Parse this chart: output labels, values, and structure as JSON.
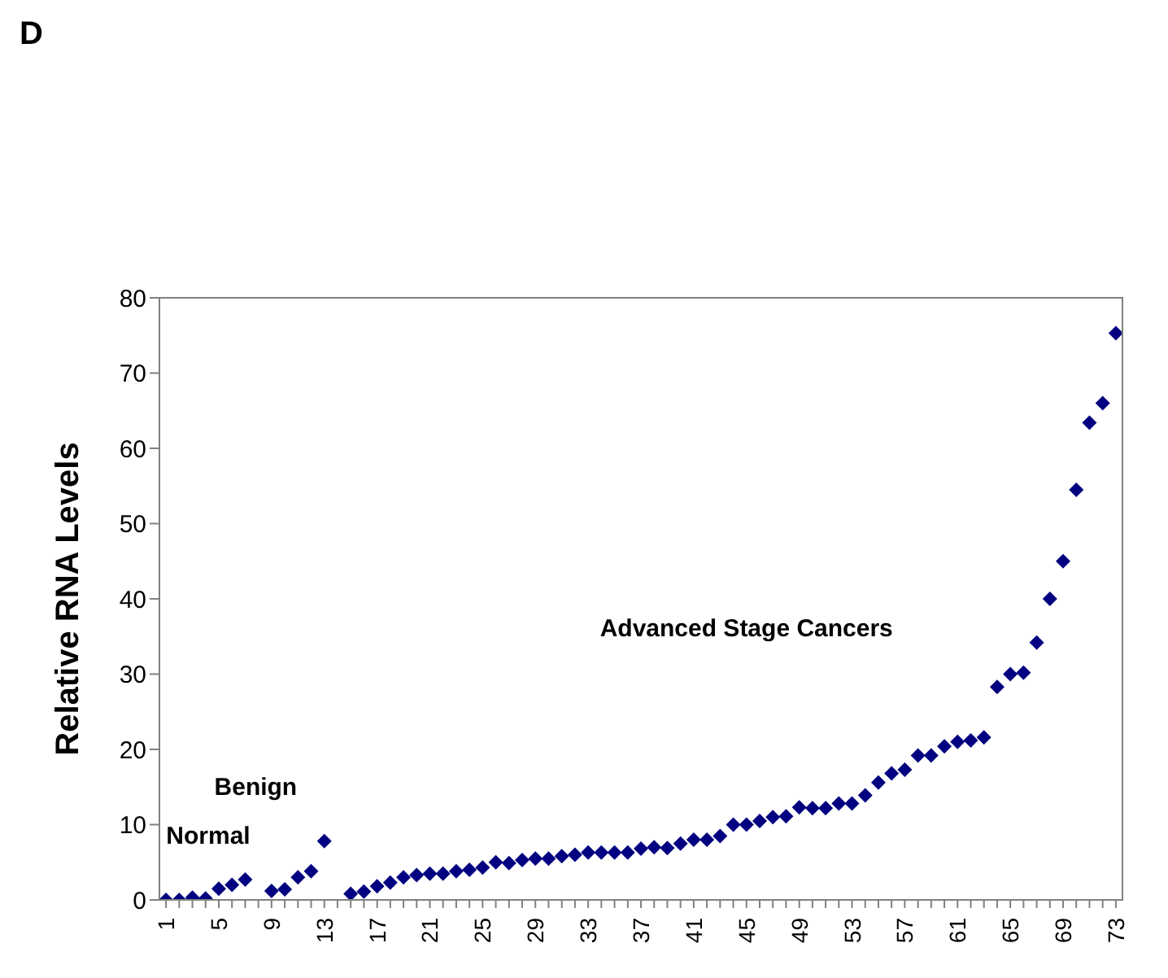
{
  "chart_data": {
    "type": "scatter",
    "title": "D",
    "ylabel": "Relative RNA Levels",
    "categories": [
      "1",
      null,
      null,
      null,
      "5",
      null,
      null,
      null,
      "9",
      null,
      null,
      null,
      "13",
      null,
      null,
      null,
      "17",
      null,
      null,
      null,
      "21",
      null,
      null,
      null,
      "25",
      null,
      null,
      null,
      "29",
      null,
      null,
      null,
      "33",
      null,
      null,
      null,
      "37",
      null,
      null,
      null,
      "41",
      null,
      null,
      null,
      "45",
      null,
      null,
      null,
      "49",
      null,
      null,
      null,
      "53",
      null,
      null,
      null,
      "57",
      null,
      null,
      null,
      "61",
      null,
      null,
      null,
      "65",
      null,
      null,
      null,
      "69",
      null,
      null,
      null,
      "73"
    ],
    "series": [
      {
        "color": "#000080",
        "values": [
          0,
          0,
          0.3,
          0.2,
          1.5,
          2,
          2.7,
          null,
          1.2,
          1.4,
          3,
          3.8,
          7.8,
          null,
          0.8,
          1.1,
          1.8,
          2.3,
          3,
          3.3,
          3.5,
          3.5,
          3.8,
          4,
          4.3,
          5,
          4.9,
          5.3,
          5.5,
          5.5,
          5.8,
          6,
          6.3,
          6.3,
          6.3,
          6.3,
          6.8,
          7,
          6.9,
          7.5,
          8,
          8,
          8.5,
          10,
          10,
          10.5,
          11,
          11.1,
          12.3,
          12.2,
          12.2,
          12.8,
          12.8,
          13.9,
          15.6,
          16.8,
          17.3,
          19.2,
          19.2,
          20.4,
          21,
          21.2,
          21.6,
          28.3,
          30,
          30.2,
          34.2,
          40,
          45,
          54.5,
          63.4,
          66,
          75.3
        ]
      }
    ],
    "ylim": [
      0,
      80
    ],
    "yticks": [
      0,
      10,
      20,
      30,
      40,
      50,
      60,
      70,
      80
    ],
    "marker": "diamond",
    "annotations": [
      "Normal",
      "Benign",
      "Advanced Stage Cancers"
    ]
  }
}
